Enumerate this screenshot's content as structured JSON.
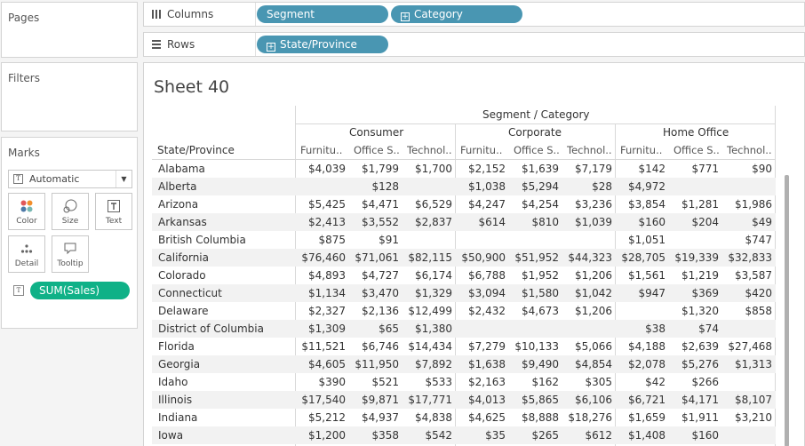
{
  "left_panel": {
    "pages_title": "Pages",
    "filters_title": "Filters",
    "marks_title": "Marks",
    "mark_type": "Automatic",
    "buttons": {
      "color": "Color",
      "size": "Size",
      "text": "Text",
      "detail": "Detail",
      "tooltip": "Tooltip"
    },
    "measure_pill": "SUM(Sales)"
  },
  "shelves": {
    "columns_label": "Columns",
    "rows_label": "Rows",
    "columns_pills": [
      "Segment",
      "Category"
    ],
    "rows_pills": [
      "State/Province"
    ]
  },
  "sheet": {
    "title": "Sheet 40",
    "top_header": "Segment / Category",
    "row_header": "State/Province",
    "segments": [
      "Consumer",
      "Corporate",
      "Home Office"
    ],
    "categories": [
      "Furnitu..",
      "Office S..",
      "Technol.."
    ],
    "rows": [
      {
        "state": "Alabama",
        "values": [
          "$4,039",
          "$1,799",
          "$1,700",
          "$2,152",
          "$1,639",
          "$7,179",
          "$142",
          "$771",
          "$90"
        ]
      },
      {
        "state": "Alberta",
        "values": [
          "",
          "$128",
          "",
          "$1,038",
          "$5,294",
          "$28",
          "$4,972",
          "",
          ""
        ]
      },
      {
        "state": "Arizona",
        "values": [
          "$5,425",
          "$4,471",
          "$6,529",
          "$4,247",
          "$4,254",
          "$3,236",
          "$3,854",
          "$1,281",
          "$1,986"
        ]
      },
      {
        "state": "Arkansas",
        "values": [
          "$2,413",
          "$3,552",
          "$2,837",
          "$614",
          "$810",
          "$1,039",
          "$160",
          "$204",
          "$49"
        ]
      },
      {
        "state": "British Columbia",
        "values": [
          "$875",
          "$91",
          "",
          "",
          "",
          "",
          "$1,051",
          "",
          "$747"
        ]
      },
      {
        "state": "California",
        "values": [
          "$76,460",
          "$71,061",
          "$82,115",
          "$50,900",
          "$51,952",
          "$44,323",
          "$28,705",
          "$19,339",
          "$32,833"
        ]
      },
      {
        "state": "Colorado",
        "values": [
          "$4,893",
          "$4,727",
          "$6,174",
          "$6,788",
          "$1,952",
          "$1,206",
          "$1,561",
          "$1,219",
          "$3,587"
        ]
      },
      {
        "state": "Connecticut",
        "values": [
          "$1,134",
          "$3,470",
          "$1,329",
          "$3,094",
          "$1,580",
          "$1,042",
          "$947",
          "$369",
          "$420"
        ]
      },
      {
        "state": "Delaware",
        "values": [
          "$2,327",
          "$2,136",
          "$12,499",
          "$2,432",
          "$4,673",
          "$1,206",
          "",
          "$1,320",
          "$858"
        ]
      },
      {
        "state": "District of Columbia",
        "values": [
          "$1,309",
          "$65",
          "$1,380",
          "",
          "",
          "",
          "$38",
          "$74",
          ""
        ]
      },
      {
        "state": "Florida",
        "values": [
          "$11,521",
          "$6,746",
          "$14,434",
          "$7,279",
          "$10,133",
          "$5,066",
          "$4,188",
          "$2,639",
          "$27,468"
        ]
      },
      {
        "state": "Georgia",
        "values": [
          "$4,605",
          "$11,950",
          "$7,892",
          "$1,638",
          "$9,490",
          "$4,854",
          "$2,078",
          "$5,276",
          "$1,313"
        ]
      },
      {
        "state": "Idaho",
        "values": [
          "$390",
          "$521",
          "$533",
          "$2,163",
          "$162",
          "$305",
          "$42",
          "$266",
          ""
        ]
      },
      {
        "state": "Illinois",
        "values": [
          "$17,540",
          "$9,871",
          "$17,771",
          "$4,013",
          "$5,865",
          "$6,106",
          "$6,721",
          "$4,171",
          "$8,107"
        ]
      },
      {
        "state": "Indiana",
        "values": [
          "$5,212",
          "$4,937",
          "$4,838",
          "$4,625",
          "$8,888",
          "$18,276",
          "$1,659",
          "$1,911",
          "$3,210"
        ]
      },
      {
        "state": "Iowa",
        "values": [
          "$1,200",
          "$358",
          "$542",
          "$35",
          "$265",
          "$612",
          "$1,408",
          "$160",
          ""
        ]
      }
    ]
  },
  "colors": {
    "dimension_pill": "#4996b2",
    "measure_pill": "#0fb187",
    "row_shade": "#f2f2f2"
  }
}
